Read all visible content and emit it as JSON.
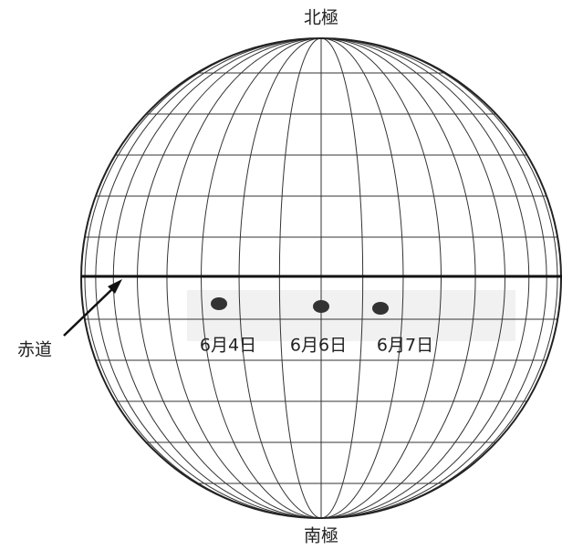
{
  "labels": {
    "north_pole": "北極",
    "south_pole": "南極",
    "equator": "赤道"
  },
  "sunspots": [
    {
      "date": "6月4日"
    },
    {
      "date": "6月6日"
    },
    {
      "date": "6月7日"
    }
  ]
}
